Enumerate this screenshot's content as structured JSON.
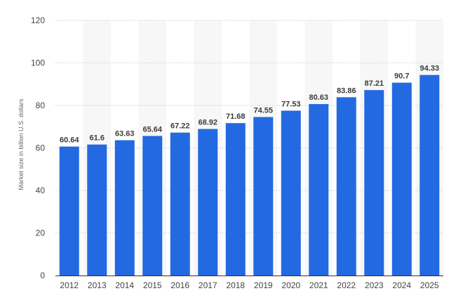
{
  "colors": {
    "bar": "#2369e1",
    "alt_band": "#f7f7f7",
    "grid": "#cccccc",
    "axis": "#333333"
  },
  "chart_data": {
    "type": "bar",
    "title": "",
    "xlabel": "",
    "ylabel": "Market size in billion U.S. dollars",
    "categories": [
      "2012",
      "2013",
      "2014",
      "2015",
      "2016",
      "2017",
      "2018",
      "2019",
      "2020",
      "2021",
      "2022",
      "2023",
      "2024",
      "2025"
    ],
    "values": [
      60.64,
      61.6,
      63.63,
      65.64,
      67.22,
      68.92,
      71.68,
      74.55,
      77.53,
      80.63,
      83.86,
      87.21,
      90.7,
      94.33
    ],
    "value_labels": [
      "60.64",
      "61.6",
      "63.63",
      "65.64",
      "67.22",
      "68.92",
      "71.68",
      "74.55",
      "77.53",
      "80.63",
      "83.86",
      "87.21",
      "90.7",
      "94.33"
    ],
    "ylim": [
      0,
      120
    ],
    "yticks": [
      "0",
      "20",
      "40",
      "60",
      "80",
      "100",
      "120"
    ],
    "grid": true,
    "legend": "none"
  }
}
